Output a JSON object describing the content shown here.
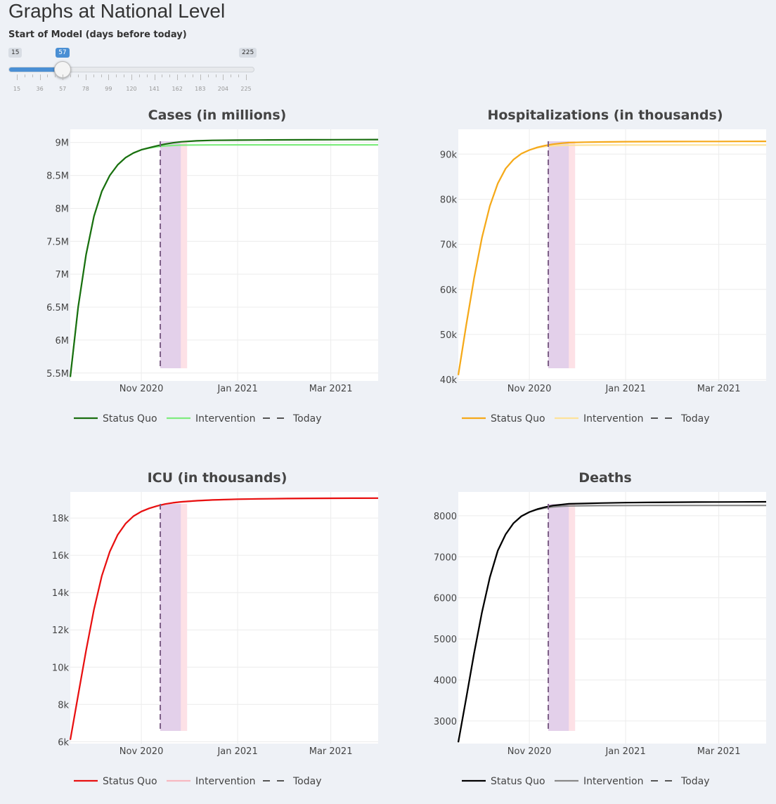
{
  "page": {
    "title": "Graphs at National Level"
  },
  "slider": {
    "label": "Start of Model (days before today)",
    "min": 15,
    "max": 225,
    "value": 57,
    "min_label": "15",
    "max_label": "225",
    "value_label": "57",
    "ticks": [
      "15",
      "36",
      "57",
      "78",
      "99",
      "120",
      "141",
      "162",
      "183",
      "204",
      "225"
    ],
    "accent": "#4a8fd4"
  },
  "chart_data": [
    {
      "type": "line",
      "title": "Cases (in millions)",
      "x": [
        "2020-09-17",
        "2020-09-22",
        "2020-09-27",
        "2020-10-02",
        "2020-10-07",
        "2020-10-12",
        "2020-10-17",
        "2020-10-22",
        "2020-10-27",
        "2020-11-01",
        "2020-11-06",
        "2020-11-11",
        "2020-11-16",
        "2020-11-21",
        "2020-11-26",
        "2020-12-06",
        "2020-12-16",
        "2021-01-01",
        "2021-01-15",
        "2021-02-01",
        "2021-02-15",
        "2021-03-01",
        "2021-03-15",
        "2021-03-31"
      ],
      "ylim": [
        5380000,
        9200000
      ],
      "yticks": [
        5500000,
        6000000,
        6500000,
        7000000,
        7500000,
        8000000,
        8500000,
        9000000
      ],
      "ytick_labels": [
        "5.5M",
        "6M",
        "6.5M",
        "7M",
        "7.5M",
        "8M",
        "8.5M",
        "9M"
      ],
      "xticks": [
        "2020-11-01",
        "2021-01-01",
        "2021-03-01"
      ],
      "xtick_labels": [
        "Nov 2020",
        "Jan 2021",
        "Mar 2021"
      ],
      "today": "2020-11-13",
      "band_purple": [
        "2020-11-13",
        "2020-11-26"
      ],
      "band_pink": [
        "2020-11-26",
        "2020-11-30"
      ],
      "legend_placement": "bottom",
      "series": [
        {
          "name": "Status Quo",
          "color": "#1a6e10",
          "values": [
            5440000,
            6500000,
            7300000,
            7880000,
            8260000,
            8500000,
            8660000,
            8770000,
            8840000,
            8890000,
            8920000,
            8950000,
            8975000,
            8995000,
            9010000,
            9025000,
            9032000,
            9036000,
            9038000,
            9040000,
            9041000,
            9042000,
            9043000,
            9044000
          ]
        },
        {
          "name": "Intervention",
          "color": "#7fec7f",
          "values": [
            5440000,
            6500000,
            7300000,
            7880000,
            8260000,
            8500000,
            8660000,
            8770000,
            8840000,
            8890000,
            8915000,
            8935000,
            8948000,
            8955000,
            8960000,
            8962000,
            8963000,
            8964000,
            8964000,
            8964000,
            8964000,
            8964000,
            8964000,
            8964000
          ]
        }
      ],
      "today_label": "Today"
    },
    {
      "type": "line",
      "title": "Hospitalizations (in thousands)",
      "x": [
        "2020-09-17",
        "2020-09-22",
        "2020-09-27",
        "2020-10-02",
        "2020-10-07",
        "2020-10-12",
        "2020-10-17",
        "2020-10-22",
        "2020-10-27",
        "2020-11-01",
        "2020-11-06",
        "2020-11-11",
        "2020-11-16",
        "2020-11-21",
        "2020-11-26",
        "2020-12-06",
        "2020-12-16",
        "2021-01-01",
        "2021-01-15",
        "2021-02-01",
        "2021-02-15",
        "2021-03-01",
        "2021-03-15",
        "2021-03-31"
      ],
      "ylim": [
        39700,
        95500
      ],
      "yticks": [
        40000,
        50000,
        60000,
        70000,
        80000,
        90000
      ],
      "ytick_labels": [
        "40k",
        "50k",
        "60k",
        "70k",
        "80k",
        "90k"
      ],
      "xticks": [
        "2020-11-01",
        "2021-01-01",
        "2021-03-01"
      ],
      "xtick_labels": [
        "Nov 2020",
        "Jan 2021",
        "Mar 2021"
      ],
      "today": "2020-11-13",
      "band_purple": [
        "2020-11-13",
        "2020-11-26"
      ],
      "band_pink": [
        "2020-11-26",
        "2020-11-30"
      ],
      "legend_placement": "bottom",
      "series": [
        {
          "name": "Status Quo",
          "color": "#f5a91a",
          "values": [
            41000,
            52000,
            62500,
            71500,
            78500,
            83500,
            86800,
            88800,
            90100,
            90900,
            91500,
            91900,
            92200,
            92400,
            92550,
            92650,
            92700,
            92750,
            92770,
            92790,
            92800,
            92810,
            92820,
            92830
          ]
        },
        {
          "name": "Intervention",
          "color": "#fde29a",
          "values": [
            41000,
            52000,
            62500,
            71500,
            78500,
            83500,
            86800,
            88800,
            90100,
            90900,
            91400,
            91700,
            91850,
            91930,
            91980,
            92000,
            92010,
            92020,
            92020,
            92020,
            92020,
            92020,
            92020,
            92020
          ]
        }
      ],
      "today_label": "Today"
    },
    {
      "type": "line",
      "title": "ICU (in thousands)",
      "x": [
        "2020-09-17",
        "2020-09-22",
        "2020-09-27",
        "2020-10-02",
        "2020-10-07",
        "2020-10-12",
        "2020-10-17",
        "2020-10-22",
        "2020-10-27",
        "2020-11-01",
        "2020-11-06",
        "2020-11-11",
        "2020-11-16",
        "2020-11-21",
        "2020-11-26",
        "2020-12-06",
        "2020-12-16",
        "2021-01-01",
        "2021-01-15",
        "2021-02-01",
        "2021-02-15",
        "2021-03-01",
        "2021-03-15",
        "2021-03-31"
      ],
      "ylim": [
        5900,
        19400
      ],
      "yticks": [
        6000,
        8000,
        10000,
        12000,
        14000,
        16000,
        18000
      ],
      "ytick_labels": [
        "6k",
        "8k",
        "10k",
        "12k",
        "14k",
        "16k",
        "18k"
      ],
      "xticks": [
        "2020-11-01",
        "2021-01-01",
        "2021-03-01"
      ],
      "xtick_labels": [
        "Nov 2020",
        "Jan 2021",
        "Mar 2021"
      ],
      "today": "2020-11-13",
      "band_purple": [
        "2020-11-13",
        "2020-11-26"
      ],
      "band_pink": [
        "2020-11-26",
        "2020-11-30"
      ],
      "legend_placement": "bottom",
      "series": [
        {
          "name": "Status Quo",
          "color": "#e81010",
          "values": [
            6100,
            8500,
            10900,
            13100,
            14900,
            16200,
            17100,
            17700,
            18100,
            18350,
            18520,
            18650,
            18750,
            18820,
            18870,
            18930,
            18970,
            19010,
            19030,
            19045,
            19055,
            19060,
            19065,
            19070
          ]
        },
        {
          "name": "Intervention",
          "color": "#f7b8c0",
          "values": [
            6100,
            8500,
            10900,
            13100,
            14900,
            16200,
            17100,
            17700,
            18100,
            18350,
            18520,
            18650,
            18750,
            18820,
            18870,
            18930,
            18970,
            19010,
            19030,
            19045,
            19055,
            19060,
            19065,
            19070
          ]
        }
      ],
      "today_label": "Today"
    },
    {
      "type": "line",
      "title": "Deaths",
      "x": [
        "2020-09-17",
        "2020-09-22",
        "2020-09-27",
        "2020-10-02",
        "2020-10-07",
        "2020-10-12",
        "2020-10-17",
        "2020-10-22",
        "2020-10-27",
        "2020-11-01",
        "2020-11-06",
        "2020-11-11",
        "2020-11-16",
        "2020-11-21",
        "2020-11-26",
        "2020-12-06",
        "2020-12-16",
        "2021-01-01",
        "2021-01-15",
        "2021-02-01",
        "2021-02-15",
        "2021-03-01",
        "2021-03-15",
        "2021-03-31"
      ],
      "ylim": [
        2450,
        8580
      ],
      "yticks": [
        3000,
        4000,
        5000,
        6000,
        7000,
        8000
      ],
      "ytick_labels": [
        "3000",
        "4000",
        "5000",
        "6000",
        "7000",
        "8000"
      ],
      "xticks": [
        "2020-11-01",
        "2021-01-01",
        "2021-03-01"
      ],
      "xtick_labels": [
        "Nov 2020",
        "Jan 2021",
        "Mar 2021"
      ],
      "today": "2020-11-13",
      "band_purple": [
        "2020-11-13",
        "2020-11-26"
      ],
      "band_pink": [
        "2020-11-26",
        "2020-11-30"
      ],
      "legend_placement": "bottom",
      "series": [
        {
          "name": "Status Quo",
          "color": "#000000",
          "values": [
            2480,
            3550,
            4650,
            5650,
            6500,
            7150,
            7550,
            7820,
            7990,
            8090,
            8160,
            8210,
            8250,
            8270,
            8290,
            8300,
            8310,
            8320,
            8325,
            8330,
            8333,
            8335,
            8337,
            8340
          ]
        },
        {
          "name": "Intervention",
          "color": "#888888",
          "values": [
            2480,
            3550,
            4650,
            5650,
            6500,
            7150,
            7550,
            7820,
            7990,
            8090,
            8150,
            8190,
            8215,
            8230,
            8240,
            8245,
            8248,
            8250,
            8251,
            8252,
            8252,
            8252,
            8252,
            8252
          ]
        }
      ],
      "today_label": "Today"
    }
  ]
}
